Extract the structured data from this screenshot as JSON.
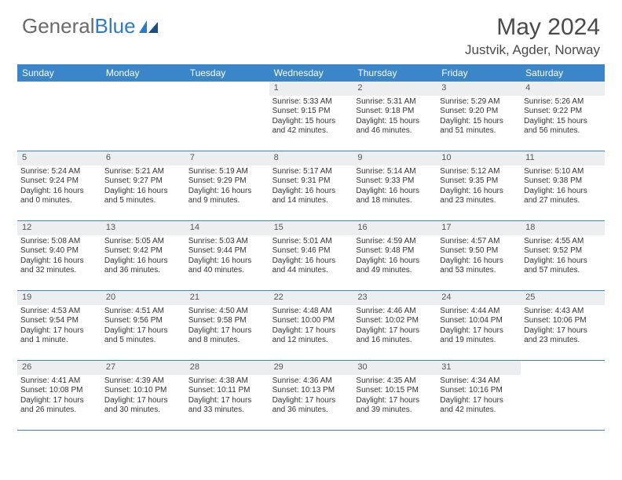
{
  "brand": {
    "textGray": "General",
    "textBlue": "Blue"
  },
  "header": {
    "title": "May 2024",
    "location": "Justvik, Agder, Norway"
  },
  "colors": {
    "headerBar": "#3a86c8",
    "dayNumBg": "#eceeef",
    "text": "#333333",
    "brandGray": "#6a6a6a",
    "brandBlue": "#2f7bbf",
    "pageBg": "#ffffff"
  },
  "typography": {
    "titleSize": 30,
    "locationSize": 17,
    "dayHeaderSize": 12,
    "dayNumSize": 11,
    "cellSize": 10
  },
  "dayNames": [
    "Sunday",
    "Monday",
    "Tuesday",
    "Wednesday",
    "Thursday",
    "Friday",
    "Saturday"
  ],
  "weeks": [
    [
      {
        "n": "",
        "sr": "",
        "ss": "",
        "dl": ""
      },
      {
        "n": "",
        "sr": "",
        "ss": "",
        "dl": ""
      },
      {
        "n": "",
        "sr": "",
        "ss": "",
        "dl": ""
      },
      {
        "n": "1",
        "sr": "Sunrise: 5:33 AM",
        "ss": "Sunset: 9:15 PM",
        "dl": "Daylight: 15 hours and 42 minutes."
      },
      {
        "n": "2",
        "sr": "Sunrise: 5:31 AM",
        "ss": "Sunset: 9:18 PM",
        "dl": "Daylight: 15 hours and 46 minutes."
      },
      {
        "n": "3",
        "sr": "Sunrise: 5:29 AM",
        "ss": "Sunset: 9:20 PM",
        "dl": "Daylight: 15 hours and 51 minutes."
      },
      {
        "n": "4",
        "sr": "Sunrise: 5:26 AM",
        "ss": "Sunset: 9:22 PM",
        "dl": "Daylight: 15 hours and 56 minutes."
      }
    ],
    [
      {
        "n": "5",
        "sr": "Sunrise: 5:24 AM",
        "ss": "Sunset: 9:24 PM",
        "dl": "Daylight: 16 hours and 0 minutes."
      },
      {
        "n": "6",
        "sr": "Sunrise: 5:21 AM",
        "ss": "Sunset: 9:27 PM",
        "dl": "Daylight: 16 hours and 5 minutes."
      },
      {
        "n": "7",
        "sr": "Sunrise: 5:19 AM",
        "ss": "Sunset: 9:29 PM",
        "dl": "Daylight: 16 hours and 9 minutes."
      },
      {
        "n": "8",
        "sr": "Sunrise: 5:17 AM",
        "ss": "Sunset: 9:31 PM",
        "dl": "Daylight: 16 hours and 14 minutes."
      },
      {
        "n": "9",
        "sr": "Sunrise: 5:14 AM",
        "ss": "Sunset: 9:33 PM",
        "dl": "Daylight: 16 hours and 18 minutes."
      },
      {
        "n": "10",
        "sr": "Sunrise: 5:12 AM",
        "ss": "Sunset: 9:35 PM",
        "dl": "Daylight: 16 hours and 23 minutes."
      },
      {
        "n": "11",
        "sr": "Sunrise: 5:10 AM",
        "ss": "Sunset: 9:38 PM",
        "dl": "Daylight: 16 hours and 27 minutes."
      }
    ],
    [
      {
        "n": "12",
        "sr": "Sunrise: 5:08 AM",
        "ss": "Sunset: 9:40 PM",
        "dl": "Daylight: 16 hours and 32 minutes."
      },
      {
        "n": "13",
        "sr": "Sunrise: 5:05 AM",
        "ss": "Sunset: 9:42 PM",
        "dl": "Daylight: 16 hours and 36 minutes."
      },
      {
        "n": "14",
        "sr": "Sunrise: 5:03 AM",
        "ss": "Sunset: 9:44 PM",
        "dl": "Daylight: 16 hours and 40 minutes."
      },
      {
        "n": "15",
        "sr": "Sunrise: 5:01 AM",
        "ss": "Sunset: 9:46 PM",
        "dl": "Daylight: 16 hours and 44 minutes."
      },
      {
        "n": "16",
        "sr": "Sunrise: 4:59 AM",
        "ss": "Sunset: 9:48 PM",
        "dl": "Daylight: 16 hours and 49 minutes."
      },
      {
        "n": "17",
        "sr": "Sunrise: 4:57 AM",
        "ss": "Sunset: 9:50 PM",
        "dl": "Daylight: 16 hours and 53 minutes."
      },
      {
        "n": "18",
        "sr": "Sunrise: 4:55 AM",
        "ss": "Sunset: 9:52 PM",
        "dl": "Daylight: 16 hours and 57 minutes."
      }
    ],
    [
      {
        "n": "19",
        "sr": "Sunrise: 4:53 AM",
        "ss": "Sunset: 9:54 PM",
        "dl": "Daylight: 17 hours and 1 minute."
      },
      {
        "n": "20",
        "sr": "Sunrise: 4:51 AM",
        "ss": "Sunset: 9:56 PM",
        "dl": "Daylight: 17 hours and 5 minutes."
      },
      {
        "n": "21",
        "sr": "Sunrise: 4:50 AM",
        "ss": "Sunset: 9:58 PM",
        "dl": "Daylight: 17 hours and 8 minutes."
      },
      {
        "n": "22",
        "sr": "Sunrise: 4:48 AM",
        "ss": "Sunset: 10:00 PM",
        "dl": "Daylight: 17 hours and 12 minutes."
      },
      {
        "n": "23",
        "sr": "Sunrise: 4:46 AM",
        "ss": "Sunset: 10:02 PM",
        "dl": "Daylight: 17 hours and 16 minutes."
      },
      {
        "n": "24",
        "sr": "Sunrise: 4:44 AM",
        "ss": "Sunset: 10:04 PM",
        "dl": "Daylight: 17 hours and 19 minutes."
      },
      {
        "n": "25",
        "sr": "Sunrise: 4:43 AM",
        "ss": "Sunset: 10:06 PM",
        "dl": "Daylight: 17 hours and 23 minutes."
      }
    ],
    [
      {
        "n": "26",
        "sr": "Sunrise: 4:41 AM",
        "ss": "Sunset: 10:08 PM",
        "dl": "Daylight: 17 hours and 26 minutes."
      },
      {
        "n": "27",
        "sr": "Sunrise: 4:39 AM",
        "ss": "Sunset: 10:10 PM",
        "dl": "Daylight: 17 hours and 30 minutes."
      },
      {
        "n": "28",
        "sr": "Sunrise: 4:38 AM",
        "ss": "Sunset: 10:11 PM",
        "dl": "Daylight: 17 hours and 33 minutes."
      },
      {
        "n": "29",
        "sr": "Sunrise: 4:36 AM",
        "ss": "Sunset: 10:13 PM",
        "dl": "Daylight: 17 hours and 36 minutes."
      },
      {
        "n": "30",
        "sr": "Sunrise: 4:35 AM",
        "ss": "Sunset: 10:15 PM",
        "dl": "Daylight: 17 hours and 39 minutes."
      },
      {
        "n": "31",
        "sr": "Sunrise: 4:34 AM",
        "ss": "Sunset: 10:16 PM",
        "dl": "Daylight: 17 hours and 42 minutes."
      },
      {
        "n": "",
        "sr": "",
        "ss": "",
        "dl": ""
      }
    ]
  ]
}
